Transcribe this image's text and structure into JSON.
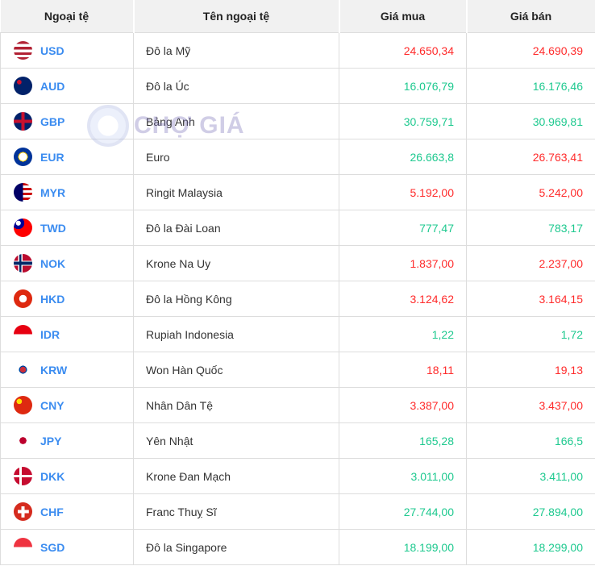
{
  "watermark": {
    "text": "CHỢ GIÁ"
  },
  "header": {
    "code": "Ngoại tệ",
    "name": "Tên ngoại tệ",
    "buy": "Giá mua",
    "sell": "Giá bán"
  },
  "colors": {
    "up": "#1ec98f",
    "down": "#ff2b2b",
    "code": "#3b8cf0"
  },
  "rows": [
    {
      "code": "USD",
      "name": "Đô la Mỹ",
      "buy": "24.650,34",
      "buy_trend": "down",
      "sell": "24.690,39",
      "sell_trend": "down",
      "flag": "linear-gradient(#b22234 0 15%,#fff 15% 30%,#b22234 30% 45%,#fff 45% 60%,#b22234 60% 75%,#fff 75% 88%,#b22234 88%)"
    },
    {
      "code": "AUD",
      "name": "Đô la Úc",
      "buy": "16.076,79",
      "buy_trend": "up",
      "sell": "16.176,46",
      "sell_trend": "up",
      "flag": "radial-gradient(circle at 30% 30%,#c8102e 0 12%,#012169 13%)"
    },
    {
      "code": "GBP",
      "name": "Bảng Anh",
      "buy": "30.759,71",
      "buy_trend": "up",
      "sell": "30.969,81",
      "sell_trend": "up",
      "flag": "linear-gradient(90deg,transparent 42%,#c8102e 42% 58%,transparent 58%),linear-gradient(transparent 42%,#c8102e 42% 58%,transparent 58%),#012169"
    },
    {
      "code": "EUR",
      "name": "Euro",
      "buy": "26.663,8",
      "buy_trend": "up",
      "sell": "26.763,41",
      "sell_trend": "down",
      "flag": "radial-gradient(circle,transparent 30%,#ffcc00 31% 36%,#003399 37%)"
    },
    {
      "code": "MYR",
      "name": "Ringit Malaysia",
      "buy": "5.192,00",
      "buy_trend": "down",
      "sell": "5.242,00",
      "sell_trend": "down",
      "flag": "linear-gradient(90deg,#010066 0 50%,transparent 50%),repeating-linear-gradient(#cc0001 0 3px,#fff 3px 6px)"
    },
    {
      "code": "TWD",
      "name": "Đô la Đài Loan",
      "buy": "777,47",
      "buy_trend": "up",
      "sell": "783,17",
      "sell_trend": "up",
      "flag": "radial-gradient(circle at 25% 25%,#fff 0 12%,#000095 13% 30%,transparent 31%),#fe0000"
    },
    {
      "code": "NOK",
      "name": "Krone Na Uy",
      "buy": "1.837,00",
      "buy_trend": "down",
      "sell": "2.237,00",
      "sell_trend": "down",
      "flag": "linear-gradient(90deg,transparent 30%,#002868 30% 42%,transparent 42%),linear-gradient(transparent 42%,#002868 42% 58%,transparent 58%),linear-gradient(90deg,transparent 25%,#fff 25% 47%,transparent 47%),linear-gradient(transparent 36%,#fff 36% 64%,transparent 64%),#ba0c2f"
    },
    {
      "code": "HKD",
      "name": "Đô la Hồng Kông",
      "buy": "3.124,62",
      "buy_trend": "down",
      "sell": "3.164,15",
      "sell_trend": "down",
      "flag": "radial-gradient(circle,#fff 0 28%,#de2910 30%)"
    },
    {
      "code": "IDR",
      "name": "Rupiah Indonesia",
      "buy": "1,22",
      "buy_trend": "up",
      "sell": "1,72",
      "sell_trend": "up",
      "flag": "linear-gradient(#e70011 0 50%,#fff 50%)"
    },
    {
      "code": "KRW",
      "name": "Won Hàn Quốc",
      "buy": "18,11",
      "buy_trend": "down",
      "sell": "19,13",
      "sell_trend": "down",
      "flag": "radial-gradient(circle,#cd2e3a 0 22%,#0047a0 23% 30%,#fff 31%)"
    },
    {
      "code": "CNY",
      "name": "Nhân Dân Tệ",
      "buy": "3.387,00",
      "buy_trend": "down",
      "sell": "3.437,00",
      "sell_trend": "down",
      "flag": "radial-gradient(circle at 30% 30%,#ffde00 0 14%,#de2910 15%)"
    },
    {
      "code": "JPY",
      "name": "Yên Nhật",
      "buy": "165,28",
      "buy_trend": "up",
      "sell": "166,5",
      "sell_trend": "up",
      "flag": "radial-gradient(circle,#bc002d 0 26%,#fff 27%)"
    },
    {
      "code": "DKK",
      "name": "Krone Đan Mạch",
      "buy": "3.011,00",
      "buy_trend": "up",
      "sell": "3.411,00",
      "sell_trend": "up",
      "flag": "linear-gradient(90deg,transparent 30%,#fff 30% 44%,transparent 44%),linear-gradient(transparent 43%,#fff 43% 57%,transparent 57%),#c60c30"
    },
    {
      "code": "CHF",
      "name": "Franc Thuỵ Sĩ",
      "buy": "27.744,00",
      "buy_trend": "up",
      "sell": "27.894,00",
      "sell_trend": "up",
      "flag": "linear-gradient(90deg,transparent 42%,#fff 42% 58%,transparent 58%) center/100% 60% no-repeat,linear-gradient(transparent 42%,#fff 42% 58%,transparent 58%) center/60% 100% no-repeat,#d52b1e"
    },
    {
      "code": "SGD",
      "name": "Đô la Singapore",
      "buy": "18.199,00",
      "buy_trend": "up",
      "sell": "18.299,00",
      "sell_trend": "up",
      "flag": "linear-gradient(#ef3340 0 50%,#fff 50%)"
    }
  ]
}
